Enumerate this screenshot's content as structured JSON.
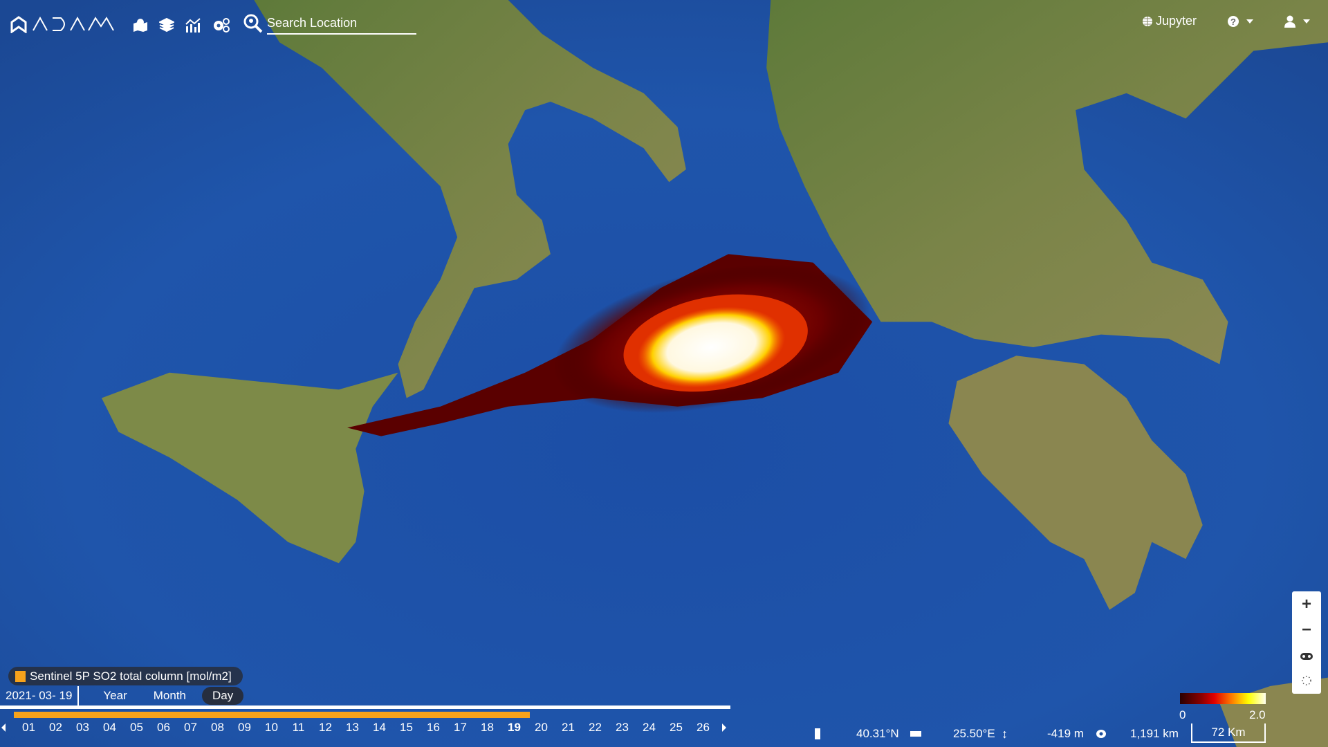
{
  "header": {
    "logo_text": "ADAMA",
    "tools": [
      "map-marker-icon",
      "layers-icon",
      "chart-icon",
      "settings-icon"
    ],
    "search": {
      "placeholder": "Search Location",
      "value": ""
    },
    "jupyter_label": "Jupyter",
    "help_icon": "question-circle-icon",
    "user_icon": "user-icon"
  },
  "layer_legend": {
    "label": "Sentinel 5P SO2 total column  [mol/m2]",
    "color": "#f7a21b"
  },
  "timeline": {
    "date": "2021- 03- 19",
    "granularity": [
      "Year",
      "Month",
      "Day"
    ],
    "active_granularity": "Day",
    "days": [
      "01",
      "02",
      "03",
      "04",
      "05",
      "06",
      "07",
      "08",
      "09",
      "10",
      "11",
      "12",
      "13",
      "14",
      "15",
      "16",
      "17",
      "18",
      "19",
      "20",
      "21",
      "22",
      "23",
      "24",
      "25",
      "26"
    ],
    "selected_day": "19",
    "progress": 0.72
  },
  "status_bar": {
    "latitude": "40.31°N",
    "longitude": "25.50°E",
    "elevation": "-419 m",
    "camera_height": "1,191 km",
    "scale": "72 Km"
  },
  "colorbar": {
    "min": "0",
    "max": "2.0",
    "colors": [
      "#2a0000",
      "#8b0000",
      "#e00000",
      "#ff7a00",
      "#ffff00",
      "#fffff0"
    ]
  },
  "map_controls": [
    "zoom-in",
    "zoom-out",
    "vr-icon",
    "compass-icon"
  ]
}
